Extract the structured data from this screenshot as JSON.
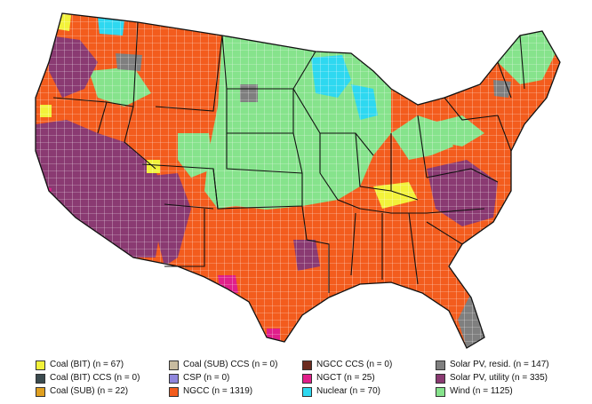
{
  "legend": {
    "items": [
      {
        "label": "Coal (BIT) (n = 67)",
        "color": "#f2f23a"
      },
      {
        "label": "Coal (BIT) CCS (n = 0)",
        "color": "#3b4b4f"
      },
      {
        "label": "Coal (SUB) (n = 22)",
        "color": "#e0a020"
      },
      {
        "label": "Coal (SUB) CCS (n = 0)",
        "color": "#c8bca0"
      },
      {
        "label": "CSP (n = 0)",
        "color": "#8f86dd"
      },
      {
        "label": "NGCC (n = 1319)",
        "color": "#f35c1d"
      },
      {
        "label": "NGCC CCS (n = 0)",
        "color": "#6b2b1f"
      },
      {
        "label": "NGCT (n = 25)",
        "color": "#e01f8a"
      },
      {
        "label": "Nuclear (n = 70)",
        "color": "#2ed8f0"
      },
      {
        "label": "Solar PV, resid. (n = 147)",
        "color": "#7f7f7f"
      },
      {
        "label": "Solar PV, utility (n = 335)",
        "color": "#8a3a72"
      },
      {
        "label": "Wind (n = 1125)",
        "color": "#86e38c"
      }
    ]
  },
  "map": {
    "colors": {
      "wind": "#86e38c",
      "ngcc": "#f35c1d",
      "solar_utility": "#8a3a72",
      "solar_resid": "#7f7f7f",
      "coal_bit": "#f2f23a",
      "coal_sub": "#e0a020",
      "nuclear": "#2ed8f0",
      "ngct": "#e01f8a",
      "border": "#111111",
      "county_line": "#ffffff"
    }
  }
}
